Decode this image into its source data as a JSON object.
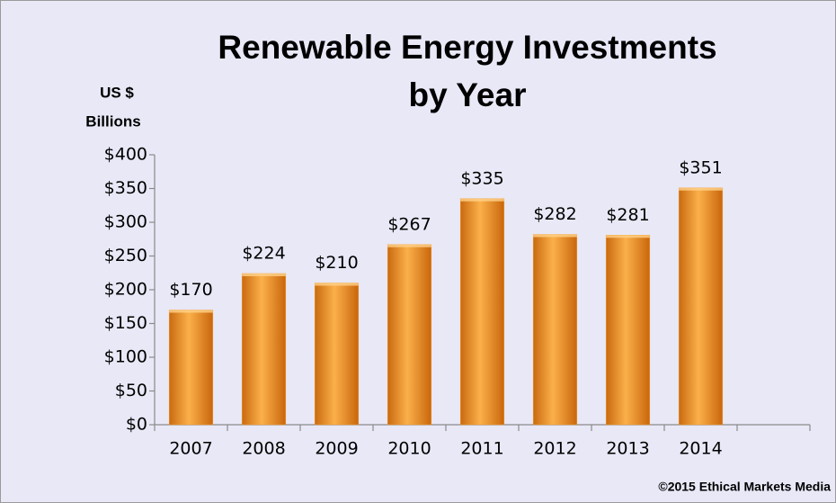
{
  "chart_data": {
    "type": "bar",
    "title": [
      "Renewable Energy Investments",
      "by Year"
    ],
    "y_label": [
      "US $",
      "Billions"
    ],
    "footer": "©2015 Ethical Markets Media",
    "categories": [
      "2007",
      "2008",
      "2009",
      "2010",
      "2011",
      "2012",
      "2013",
      "2014",
      null
    ],
    "values": [
      170,
      224,
      210,
      267,
      335,
      282,
      281,
      351,
      null
    ],
    "value_labels": [
      "$170",
      "$224",
      "$210",
      "$267",
      "$335",
      "$282",
      "$281",
      "$351",
      null
    ],
    "color": "#f39c2c",
    "ylim": [
      0,
      400
    ],
    "yticks": [
      {
        "value": 0,
        "label": "$0"
      },
      {
        "value": 50,
        "label": "$50"
      },
      {
        "value": 100,
        "label": "$100"
      },
      {
        "value": 150,
        "label": "$150"
      },
      {
        "value": 200,
        "label": "$200"
      },
      {
        "value": 250,
        "label": "$250"
      },
      {
        "value": 300,
        "label": "$300"
      },
      {
        "value": 350,
        "label": "$350"
      },
      {
        "value": 400,
        "label": "$400"
      }
    ],
    "grid": false
  }
}
